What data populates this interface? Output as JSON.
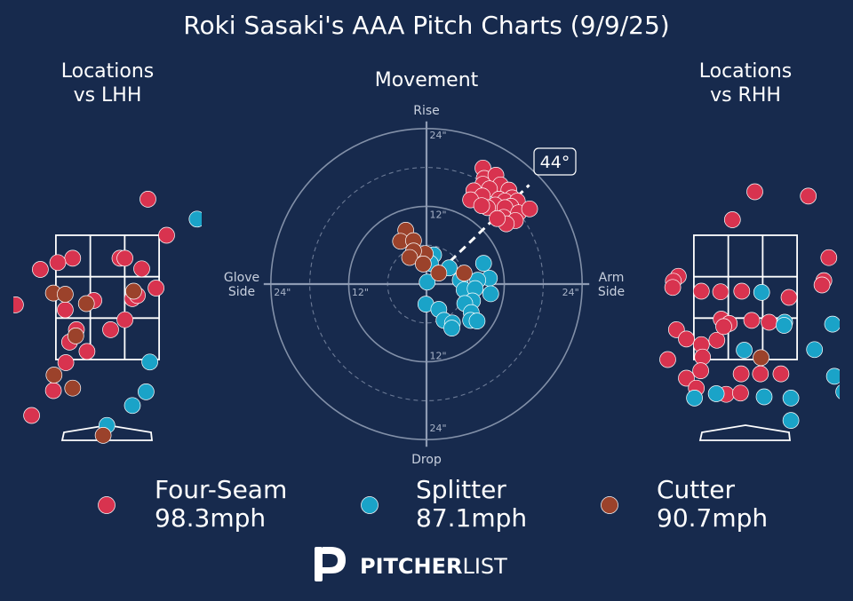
{
  "title": "Roki Sasaki's AAA Pitch Charts (9/9/25)",
  "colors": {
    "background": "#172a4d",
    "four_seam": "#d8334f",
    "splitter": "#1aa3c8",
    "cutter": "#9b422b",
    "lines": "#ffffff",
    "grid": "#8e9bb3"
  },
  "chart_data": [
    {
      "type": "scatter",
      "title": "Locations\nvs LHH",
      "xlim": [
        -2.4,
        2.4
      ],
      "ylim": [
        -0.3,
        5.0
      ],
      "strike_zone": {
        "x": [
          -0.83,
          0.83
        ],
        "z": [
          1.5,
          3.5
        ]
      },
      "series": [
        {
          "name": "Four-Seam",
          "points": [
            [
              0.65,
              4.08
            ],
            [
              0.95,
              3.5
            ],
            [
              -0.56,
              3.13
            ],
            [
              -0.8,
              3.06
            ],
            [
              0.2,
              3.13
            ],
            [
              0.28,
              3.13
            ],
            [
              -1.08,
              2.95
            ],
            [
              0.55,
              2.96
            ],
            [
              -0.22,
              2.45
            ],
            [
              0.4,
              2.48
            ],
            [
              0.48,
              2.53
            ],
            [
              0.78,
              2.65
            ],
            [
              -1.48,
              2.38
            ],
            [
              -0.68,
              2.3
            ],
            [
              0.28,
              2.14
            ],
            [
              -0.5,
              1.98
            ],
            [
              0.05,
              1.98
            ],
            [
              -0.61,
              1.78
            ],
            [
              -0.33,
              1.63
            ],
            [
              -0.67,
              1.45
            ],
            [
              -0.87,
              1.0
            ],
            [
              -1.22,
              0.6
            ]
          ]
        },
        {
          "name": "Splitter",
          "points": [
            [
              1.44,
              3.76
            ],
            [
              0.68,
              1.46
            ],
            [
              0.62,
              0.98
            ],
            [
              0.4,
              0.76
            ],
            [
              -0.01,
              0.44
            ]
          ]
        },
        {
          "name": "Cutter",
          "points": [
            [
              0.42,
              2.6
            ],
            [
              -0.87,
              2.57
            ],
            [
              -0.68,
              2.55
            ],
            [
              -0.34,
              2.4
            ],
            [
              -0.51,
              1.88
            ],
            [
              -0.86,
              1.25
            ],
            [
              -0.56,
              1.04
            ],
            [
              -0.07,
              0.28
            ]
          ]
        }
      ]
    },
    {
      "type": "scatter",
      "title": "Movement",
      "axis_labels": {
        "top": "Rise",
        "bottom": "Drop",
        "left": "Glove\nSide",
        "right": "Arm\nSide"
      },
      "rings": [
        "24\"",
        "12\""
      ],
      "xlim": [
        -24,
        24
      ],
      "ylim": [
        -24,
        24
      ],
      "arm_angle_label": "44°",
      "arm_angle_deg": 44,
      "series": [
        {
          "name": "Four-Seam",
          "points": [
            [
              8.7,
              17.9
            ],
            [
              8.9,
              16.3
            ],
            [
              10.7,
              16.8
            ],
            [
              8.7,
              15.4
            ],
            [
              11.4,
              15.3
            ],
            [
              7.3,
              14.4
            ],
            [
              9.7,
              14.7
            ],
            [
              12.7,
              14.5
            ],
            [
              13.2,
              13.3
            ],
            [
              8.6,
              13.6
            ],
            [
              11.2,
              13.1
            ],
            [
              12.1,
              12.8
            ],
            [
              6.8,
              13.0
            ],
            [
              14.0,
              12.8
            ],
            [
              10.6,
              12.2
            ],
            [
              9.4,
              11.8
            ],
            [
              13.0,
              12.0
            ],
            [
              12.1,
              11.8
            ],
            [
              14.2,
              11.0
            ],
            [
              15.9,
              11.6
            ],
            [
              8.5,
              12.1
            ],
            [
              11.9,
              10.3
            ],
            [
              13.7,
              9.8
            ],
            [
              12.3,
              9.3
            ],
            [
              10.9,
              10.1
            ]
          ]
        },
        {
          "name": "Splitter",
          "points": [
            [
              1.1,
              4.5
            ],
            [
              8.8,
              3.2
            ],
            [
              0.6,
              3.2
            ],
            [
              3.5,
              2.5
            ],
            [
              9.7,
              0.9
            ],
            [
              7.9,
              0.6
            ],
            [
              5.2,
              0.6
            ],
            [
              0.1,
              0.3
            ],
            [
              5.8,
              -0.9
            ],
            [
              7.5,
              -0.7
            ],
            [
              9.9,
              -1.5
            ],
            [
              7.1,
              -2.6
            ],
            [
              5.9,
              -3.0
            ],
            [
              -0.1,
              -3.1
            ],
            [
              1.9,
              -3.9
            ],
            [
              6.9,
              -4.4
            ],
            [
              2.7,
              -5.6
            ],
            [
              6.8,
              -5.6
            ],
            [
              4.0,
              -6.0
            ],
            [
              7.8,
              -5.7
            ],
            [
              3.9,
              -6.8
            ]
          ]
        },
        {
          "name": "Cutter",
          "points": [
            [
              -3.2,
              8.3
            ],
            [
              -4.0,
              6.6
            ],
            [
              -2.0,
              6.7
            ],
            [
              -0.2,
              4.7
            ],
            [
              -2.0,
              5.1
            ],
            [
              -2.6,
              4.1
            ],
            [
              -0.5,
              3.1
            ],
            [
              1.9,
              1.7
            ],
            [
              5.8,
              1.7
            ]
          ]
        }
      ]
    },
    {
      "type": "scatter",
      "title": "Locations\nvs RHH",
      "xlim": [
        -2.4,
        2.4
      ],
      "ylim": [
        -0.3,
        5.0
      ],
      "strike_zone": {
        "x": [
          -0.83,
          0.83
        ],
        "z": [
          1.5,
          3.5
        ]
      },
      "series": [
        {
          "name": "Four-Seam",
          "points": [
            [
              0.15,
              4.2
            ],
            [
              1.01,
              4.13
            ],
            [
              -0.21,
              3.75
            ],
            [
              1.34,
              3.14
            ],
            [
              -1.08,
              2.84
            ],
            [
              1.26,
              2.77
            ],
            [
              -1.16,
              2.76
            ],
            [
              -0.71,
              2.6
            ],
            [
              -0.4,
              2.59
            ],
            [
              -0.06,
              2.6
            ],
            [
              0.7,
              2.5
            ],
            [
              1.23,
              2.7
            ],
            [
              -1.17,
              2.66
            ],
            [
              -0.39,
              2.15
            ],
            [
              0.1,
              2.13
            ],
            [
              -0.26,
              2.08
            ],
            [
              -1.11,
              1.98
            ],
            [
              -0.95,
              1.83
            ],
            [
              -0.46,
              1.81
            ],
            [
              -0.35,
              2.03
            ],
            [
              -0.71,
              1.74
            ],
            [
              0.38,
              2.1
            ],
            [
              -1.25,
              1.5
            ],
            [
              -0.69,
              1.54
            ],
            [
              -0.72,
              1.32
            ],
            [
              -0.07,
              1.27
            ],
            [
              0.24,
              1.27
            ],
            [
              0.57,
              1.27
            ],
            [
              -0.95,
              1.2
            ],
            [
              -0.79,
              1.04
            ],
            [
              -0.31,
              0.94
            ],
            [
              -0.08,
              0.96
            ]
          ]
        },
        {
          "name": "Splitter",
          "points": [
            [
              0.26,
              2.58
            ],
            [
              0.63,
              2.1
            ],
            [
              0.62,
              2.05
            ],
            [
              1.4,
              2.07
            ],
            [
              -0.02,
              1.65
            ],
            [
              1.11,
              1.66
            ],
            [
              1.43,
              1.23
            ],
            [
              1.58,
              0.98
            ],
            [
              -0.82,
              0.88
            ],
            [
              -0.47,
              0.95
            ],
            [
              0.3,
              0.9
            ],
            [
              0.73,
              0.88
            ],
            [
              0.73,
              0.52
            ]
          ]
        },
        {
          "name": "Cutter",
          "points": [
            [
              0.25,
              1.53
            ]
          ]
        }
      ]
    }
  ],
  "legend": [
    {
      "name": "Four-Seam",
      "speed": "98.3mph"
    },
    {
      "name": "Splitter",
      "speed": "87.1mph"
    },
    {
      "name": "Cutter",
      "speed": "90.7mph"
    }
  ],
  "logo_text": {
    "bold": "PITCHER",
    "light": "LIST"
  }
}
